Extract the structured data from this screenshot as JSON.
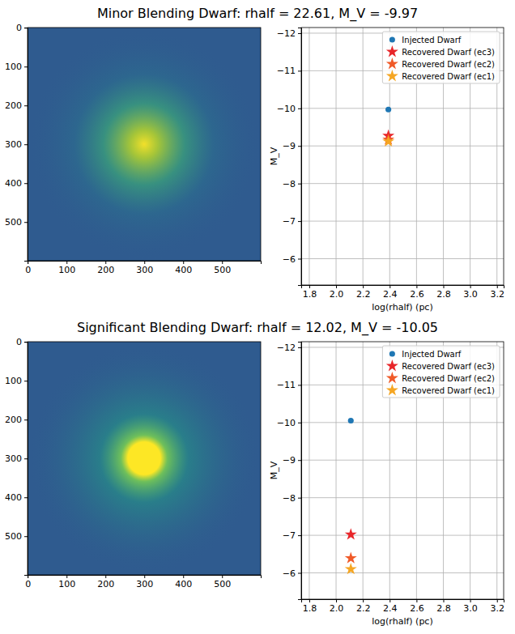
{
  "chart_data": [
    {
      "type": "image",
      "title": "Minor Blending Dwarf: rhalf = 22.61, M_V = -9.97",
      "xlim": [
        -0.5,
        599.5
      ],
      "ylim": [
        599.5,
        -0.5
      ],
      "xticks": [
        0,
        100,
        200,
        300,
        400,
        500
      ],
      "yticks": [
        0,
        100,
        200,
        300,
        400,
        500
      ]
    },
    {
      "type": "scatter",
      "xlabel": "log(rhalf) (pc)",
      "ylabel": "M_V",
      "xlim": [
        1.74,
        3.25
      ],
      "ylim": [
        -5.3,
        -12.15
      ],
      "xticks": [
        {
          "value": 1.8,
          "label": "1.8"
        },
        {
          "value": 2,
          "label": "2.0"
        },
        {
          "value": 2.2,
          "label": "2.2"
        },
        {
          "value": 2.4,
          "label": "2.4"
        },
        {
          "value": 2.6,
          "label": "2.6"
        },
        {
          "value": 2.8,
          "label": "2.8"
        },
        {
          "value": 3,
          "label": "3.0"
        },
        {
          "value": 3.2,
          "label": "3.2"
        }
      ],
      "yticks": [
        {
          "value": -12,
          "label": "−12"
        },
        {
          "value": -11,
          "label": "−11"
        },
        {
          "value": -10,
          "label": "−10"
        },
        {
          "value": -9,
          "label": "−9"
        },
        {
          "value": -8,
          "label": "−8"
        },
        {
          "value": -7,
          "label": "−7"
        },
        {
          "value": -6,
          "label": "−6"
        }
      ],
      "grid": true,
      "legend": "upper right",
      "series": [
        {
          "name": "Injected Dwarf",
          "color": "#1f77b4",
          "marker": "circle",
          "x": [
            2.39
          ],
          "values": [
            -9.97
          ]
        },
        {
          "name": "Recovered Dwarf (ec3)",
          "color": "#e8262a",
          "marker": "star",
          "x": [
            2.39
          ],
          "values": [
            -9.27
          ]
        },
        {
          "name": "Recovered Dwarf (ec2)",
          "color": "#f05a28",
          "marker": "star",
          "x": [
            2.39
          ],
          "values": [
            -9.17
          ]
        },
        {
          "name": "Recovered Dwarf (ec1)",
          "color": "#f5a623",
          "marker": "star",
          "x": [
            2.39
          ],
          "values": [
            -9.12
          ]
        }
      ]
    },
    {
      "type": "image",
      "title": "Significant Blending Dwarf: rhalf = 12.02, M_V = -10.05",
      "xlim": [
        -0.5,
        599.5
      ],
      "ylim": [
        599.5,
        -0.5
      ],
      "xticks": [
        0,
        100,
        200,
        300,
        400,
        500
      ],
      "yticks": [
        0,
        100,
        200,
        300,
        400,
        500
      ]
    },
    {
      "type": "scatter",
      "xlabel": "log(rhalf) (pc)",
      "ylabel": "M_V",
      "xlim": [
        1.74,
        3.25
      ],
      "ylim": [
        -5.3,
        -12.15
      ],
      "xticks": [
        {
          "value": 1.8,
          "label": "1.8"
        },
        {
          "value": 2,
          "label": "2.0"
        },
        {
          "value": 2.2,
          "label": "2.2"
        },
        {
          "value": 2.4,
          "label": "2.4"
        },
        {
          "value": 2.6,
          "label": "2.6"
        },
        {
          "value": 2.8,
          "label": "2.8"
        },
        {
          "value": 3,
          "label": "3.0"
        },
        {
          "value": 3.2,
          "label": "3.2"
        }
      ],
      "yticks": [
        {
          "value": -12,
          "label": "−12"
        },
        {
          "value": -11,
          "label": "−11"
        },
        {
          "value": -10,
          "label": "−10"
        },
        {
          "value": -9,
          "label": "−9"
        },
        {
          "value": -8,
          "label": "−8"
        },
        {
          "value": -7,
          "label": "−7"
        },
        {
          "value": -6,
          "label": "−6"
        }
      ],
      "grid": true,
      "legend": "upper right",
      "series": [
        {
          "name": "Injected Dwarf",
          "color": "#1f77b4",
          "marker": "circle",
          "x": [
            2.11
          ],
          "values": [
            -10.05
          ]
        },
        {
          "name": "Recovered Dwarf (ec3)",
          "color": "#e8262a",
          "marker": "star",
          "x": [
            2.11
          ],
          "values": [
            -7.02
          ]
        },
        {
          "name": "Recovered Dwarf (ec2)",
          "color": "#f05a28",
          "marker": "star",
          "x": [
            2.11
          ],
          "values": [
            -6.39
          ]
        },
        {
          "name": "Recovered Dwarf (ec1)",
          "color": "#f5a623",
          "marker": "star",
          "x": [
            2.11
          ],
          "values": [
            -6.1
          ]
        }
      ]
    }
  ]
}
